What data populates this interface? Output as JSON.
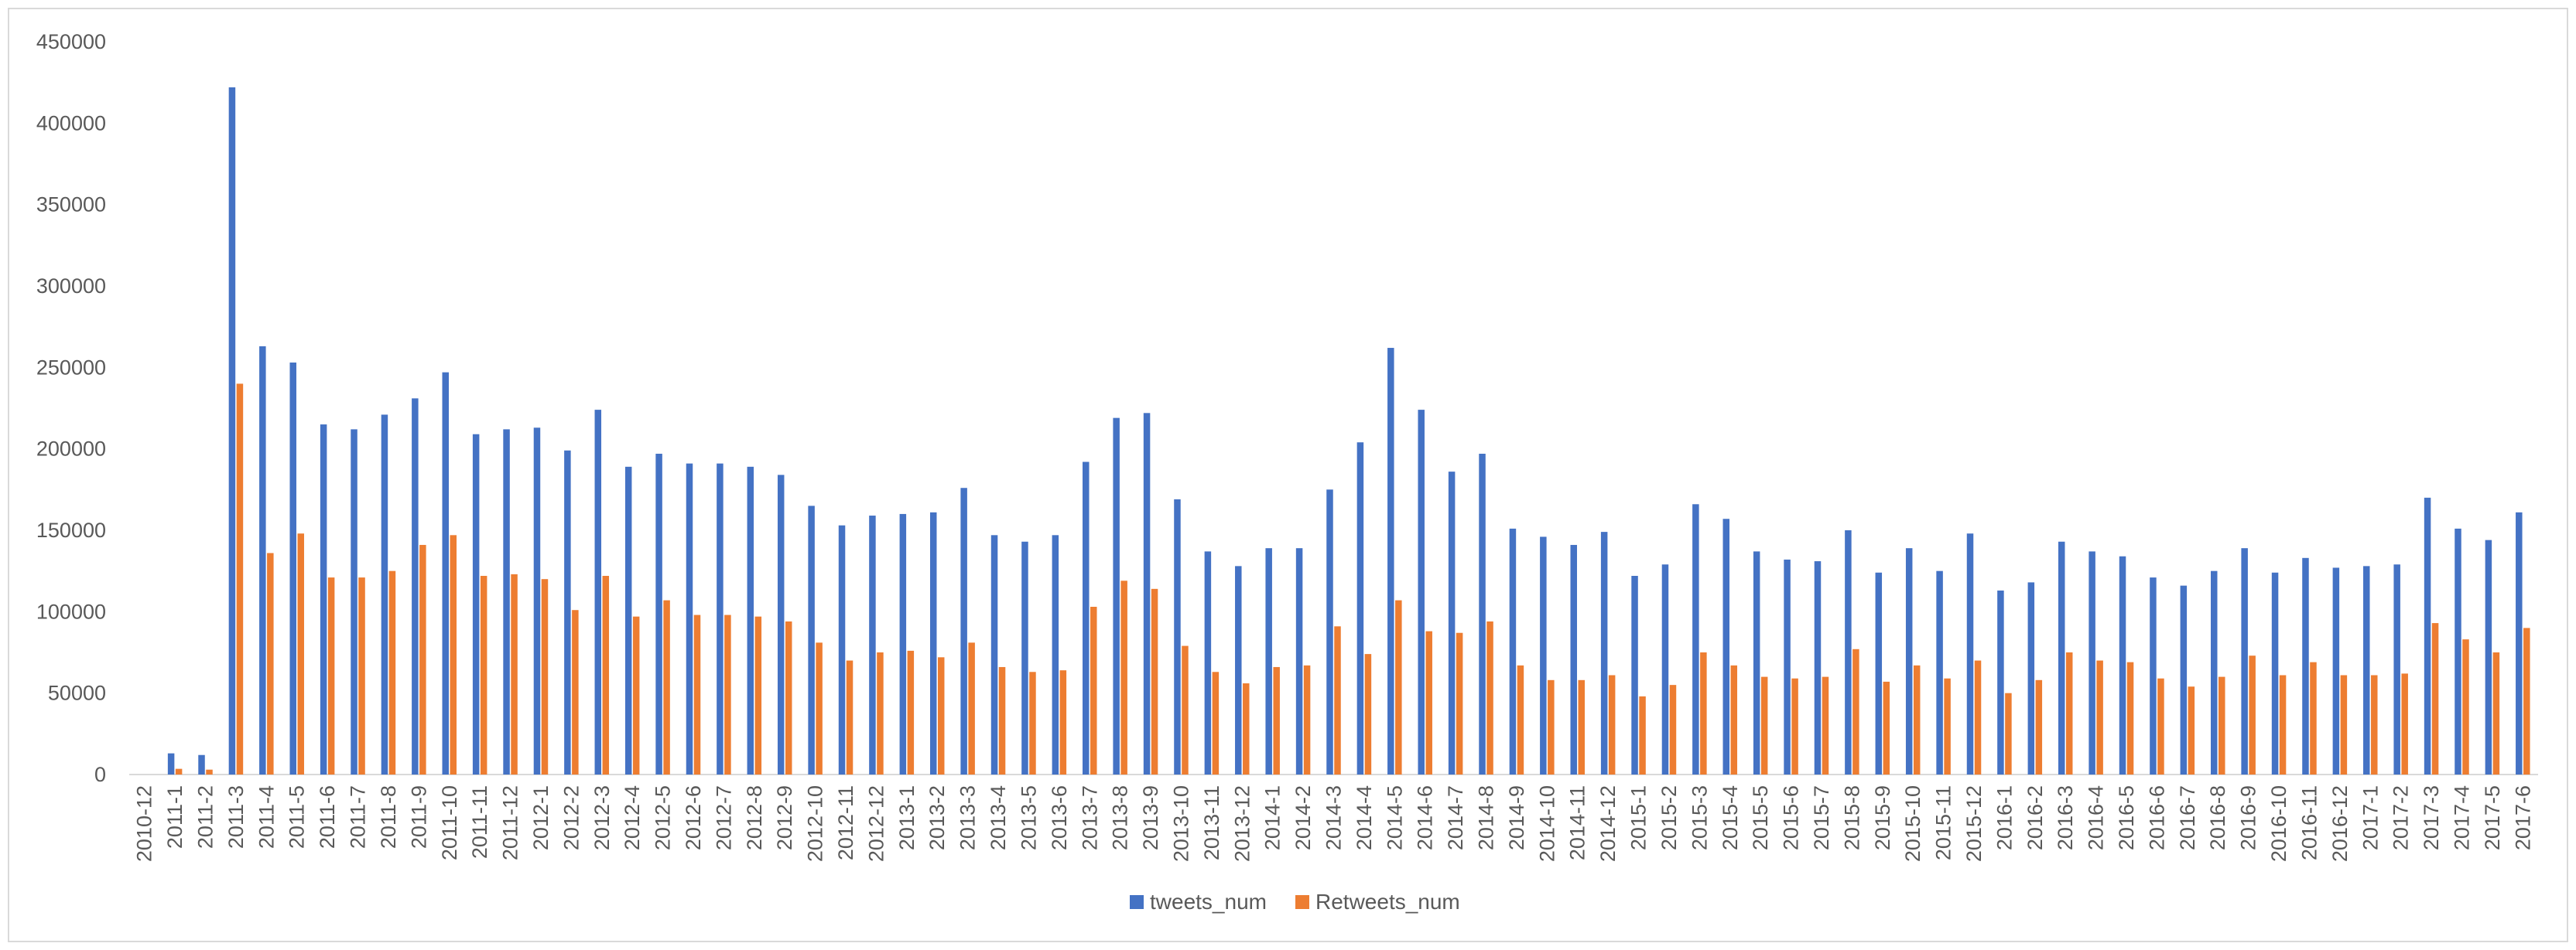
{
  "chart_data": {
    "type": "bar",
    "title": "",
    "xlabel": "",
    "ylabel": "",
    "ylim": [
      0,
      450000
    ],
    "yticks": [
      0,
      50000,
      100000,
      150000,
      200000,
      250000,
      300000,
      350000,
      400000,
      450000
    ],
    "grid": false,
    "legend_position": "bottom",
    "categories": [
      "2010-12",
      "2011-1",
      "2011-2",
      "2011-3",
      "2011-4",
      "2011-5",
      "2011-6",
      "2011-7",
      "2011-8",
      "2011-9",
      "2011-10",
      "2011-11",
      "2011-12",
      "2012-1",
      "2012-2",
      "2012-3",
      "2012-4",
      "2012-5",
      "2012-6",
      "2012-7",
      "2012-8",
      "2012-9",
      "2012-10",
      "2012-11",
      "2012-12",
      "2013-1",
      "2013-2",
      "2013-3",
      "2013-4",
      "2013-5",
      "2013-6",
      "2013-7",
      "2013-8",
      "2013-9",
      "2013-10",
      "2013-11",
      "2013-12",
      "2014-1",
      "2014-2",
      "2014-3",
      "2014-4",
      "2014-5",
      "2014-6",
      "2014-7",
      "2014-8",
      "2014-9",
      "2014-10",
      "2014-11",
      "2014-12",
      "2015-1",
      "2015-2",
      "2015-3",
      "2015-4",
      "2015-5",
      "2015-6",
      "2015-7",
      "2015-8",
      "2015-9",
      "2015-10",
      "2015-11",
      "2015-12",
      "2016-1",
      "2016-2",
      "2016-3",
      "2016-4",
      "2016-5",
      "2016-6",
      "2016-7",
      "2016-8",
      "2016-9",
      "2016-10",
      "2016-11",
      "2016-12",
      "2017-1",
      "2017-2",
      "2017-3",
      "2017-4",
      "2017-5",
      "2017-6"
    ],
    "series": [
      {
        "name": "tweets_num",
        "color": "#4472c4",
        "values": [
          0,
          13000,
          12000,
          422000,
          263000,
          253000,
          215000,
          212000,
          221000,
          231000,
          247000,
          209000,
          212000,
          213000,
          199000,
          224000,
          189000,
          197000,
          191000,
          191000,
          189000,
          184000,
          165000,
          153000,
          159000,
          160000,
          161000,
          176000,
          147000,
          143000,
          147000,
          192000,
          219000,
          222000,
          169000,
          137000,
          128000,
          139000,
          139000,
          175000,
          204000,
          262000,
          224000,
          186000,
          197000,
          151000,
          146000,
          141000,
          149000,
          122000,
          129000,
          166000,
          157000,
          137000,
          132000,
          131000,
          150000,
          124000,
          139000,
          125000,
          148000,
          113000,
          118000,
          143000,
          137000,
          134000,
          121000,
          116000,
          125000,
          139000,
          124000,
          133000,
          127000,
          128000,
          129000,
          170000,
          151000,
          144000,
          161000
        ]
      },
      {
        "name": "Retweets_num",
        "color": "#ed7d31",
        "values": [
          0,
          3500,
          3000,
          240000,
          136000,
          148000,
          121000,
          121000,
          125000,
          141000,
          147000,
          122000,
          123000,
          120000,
          101000,
          122000,
          97000,
          107000,
          98000,
          98000,
          97000,
          94000,
          81000,
          70000,
          75000,
          76000,
          72000,
          81000,
          66000,
          63000,
          64000,
          103000,
          119000,
          114000,
          79000,
          63000,
          56000,
          66000,
          67000,
          91000,
          74000,
          107000,
          88000,
          87000,
          94000,
          67000,
          58000,
          58000,
          61000,
          48000,
          55000,
          75000,
          67000,
          60000,
          59000,
          60000,
          77000,
          57000,
          67000,
          59000,
          70000,
          50000,
          58000,
          75000,
          70000,
          69000,
          59000,
          54000,
          60000,
          73000,
          61000,
          69000,
          61000,
          61000,
          62000,
          93000,
          83000,
          75000,
          90000
        ]
      }
    ]
  }
}
